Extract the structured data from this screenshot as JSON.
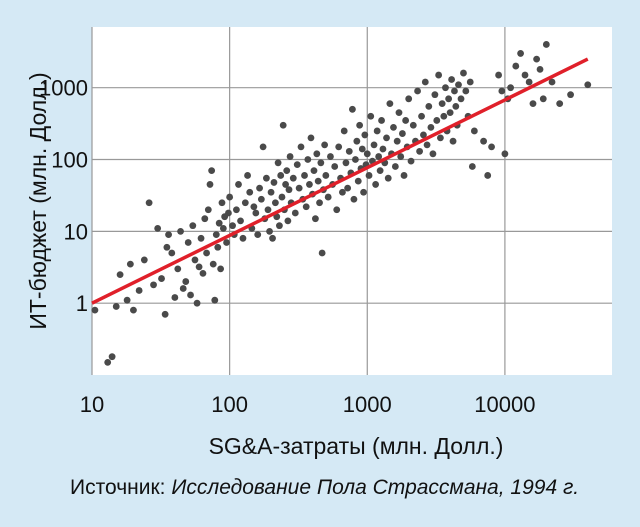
{
  "chart_data": {
    "type": "scatter",
    "xlabel": "SG&A-затраты (млн. Долл.)",
    "ylabel": "ИТ-бюджет (млн. Долл.)",
    "x_scale": "log",
    "y_scale": "log",
    "xlim": [
      10,
      60000
    ],
    "ylim": [
      0.1,
      7000
    ],
    "x_ticks": [
      10,
      100,
      1000,
      10000
    ],
    "x_tick_labels": [
      "10",
      "100",
      "1000",
      "10000"
    ],
    "y_ticks": [
      1,
      10,
      100,
      1000
    ],
    "y_tick_labels": [
      "1",
      "10",
      "100",
      "1000"
    ],
    "grid": true,
    "colors": {
      "points": "#4a4a4a",
      "trend": "#e0202a",
      "plot_bg": "#ffffff",
      "page_bg": "#d5e9f5"
    },
    "trend_line": {
      "x": [
        10,
        40000
      ],
      "y": [
        1,
        2500
      ]
    },
    "points": [
      [
        10.5,
        0.8
      ],
      [
        13,
        0.15
      ],
      [
        14,
        0.18
      ],
      [
        15,
        0.9
      ],
      [
        16,
        2.5
      ],
      [
        18,
        1.1
      ],
      [
        19,
        3.5
      ],
      [
        20,
        0.8
      ],
      [
        22,
        1.5
      ],
      [
        24,
        4
      ],
      [
        26,
        25
      ],
      [
        28,
        1.8
      ],
      [
        30,
        11
      ],
      [
        32,
        2.2
      ],
      [
        34,
        0.7
      ],
      [
        35,
        6
      ],
      [
        36,
        9
      ],
      [
        38,
        5
      ],
      [
        40,
        1.2
      ],
      [
        42,
        3
      ],
      [
        44,
        10
      ],
      [
        46,
        1.6
      ],
      [
        48,
        2
      ],
      [
        50,
        7
      ],
      [
        52,
        1.3
      ],
      [
        54,
        12
      ],
      [
        56,
        4
      ],
      [
        58,
        1
      ],
      [
        60,
        3.2
      ],
      [
        62,
        8
      ],
      [
        64,
        2.6
      ],
      [
        66,
        15
      ],
      [
        68,
        5
      ],
      [
        70,
        20
      ],
      [
        72,
        45
      ],
      [
        74,
        70
      ],
      [
        76,
        3.5
      ],
      [
        78,
        1.1
      ],
      [
        80,
        9
      ],
      [
        82,
        6
      ],
      [
        84,
        13
      ],
      [
        86,
        3
      ],
      [
        88,
        25
      ],
      [
        90,
        11
      ],
      [
        92,
        16
      ],
      [
        95,
        7
      ],
      [
        98,
        18
      ],
      [
        100,
        30
      ],
      [
        105,
        12
      ],
      [
        108,
        9
      ],
      [
        112,
        20
      ],
      [
        116,
        45
      ],
      [
        120,
        14
      ],
      [
        125,
        8
      ],
      [
        130,
        25
      ],
      [
        135,
        60
      ],
      [
        140,
        35
      ],
      [
        145,
        11
      ],
      [
        150,
        22
      ],
      [
        155,
        18
      ],
      [
        160,
        9
      ],
      [
        165,
        40
      ],
      [
        170,
        28
      ],
      [
        175,
        150
      ],
      [
        180,
        15
      ],
      [
        185,
        55
      ],
      [
        190,
        20
      ],
      [
        195,
        10
      ],
      [
        200,
        35
      ],
      [
        205,
        8
      ],
      [
        210,
        48
      ],
      [
        215,
        25
      ],
      [
        220,
        16
      ],
      [
        225,
        90
      ],
      [
        230,
        12
      ],
      [
        235,
        60
      ],
      [
        240,
        30
      ],
      [
        245,
        300
      ],
      [
        250,
        20
      ],
      [
        255,
        45
      ],
      [
        260,
        70
      ],
      [
        265,
        14
      ],
      [
        270,
        38
      ],
      [
        275,
        110
      ],
      [
        280,
        25
      ],
      [
        290,
        55
      ],
      [
        300,
        18
      ],
      [
        310,
        85
      ],
      [
        320,
        40
      ],
      [
        330,
        150
      ],
      [
        340,
        28
      ],
      [
        350,
        60
      ],
      [
        360,
        22
      ],
      [
        370,
        100
      ],
      [
        380,
        45
      ],
      [
        390,
        200
      ],
      [
        400,
        33
      ],
      [
        410,
        70
      ],
      [
        420,
        15
      ],
      [
        430,
        120
      ],
      [
        440,
        50
      ],
      [
        450,
        25
      ],
      [
        460,
        90
      ],
      [
        470,
        5
      ],
      [
        480,
        38
      ],
      [
        490,
        160
      ],
      [
        500,
        60
      ],
      [
        520,
        30
      ],
      [
        540,
        110
      ],
      [
        560,
        45
      ],
      [
        580,
        80
      ],
      [
        600,
        20
      ],
      [
        620,
        150
      ],
      [
        640,
        55
      ],
      [
        660,
        35
      ],
      [
        680,
        250
      ],
      [
        700,
        90
      ],
      [
        720,
        40
      ],
      [
        740,
        130
      ],
      [
        760,
        65
      ],
      [
        780,
        500
      ],
      [
        800,
        28
      ],
      [
        820,
        100
      ],
      [
        840,
        180
      ],
      [
        860,
        50
      ],
      [
        880,
        300
      ],
      [
        900,
        75
      ],
      [
        920,
        140
      ],
      [
        940,
        35
      ],
      [
        960,
        220
      ],
      [
        980,
        85
      ],
      [
        1000,
        120
      ],
      [
        1030,
        60
      ],
      [
        1060,
        400
      ],
      [
        1090,
        95
      ],
      [
        1120,
        160
      ],
      [
        1150,
        45
      ],
      [
        1180,
        250
      ],
      [
        1210,
        110
      ],
      [
        1240,
        70
      ],
      [
        1270,
        350
      ],
      [
        1300,
        140
      ],
      [
        1340,
        90
      ],
      [
        1380,
        200
      ],
      [
        1420,
        55
      ],
      [
        1460,
        600
      ],
      [
        1500,
        120
      ],
      [
        1550,
        280
      ],
      [
        1600,
        80
      ],
      [
        1650,
        180
      ],
      [
        1700,
        450
      ],
      [
        1750,
        110
      ],
      [
        1800,
        230
      ],
      [
        1850,
        60
      ],
      [
        1900,
        350
      ],
      [
        1950,
        150
      ],
      [
        2000,
        700
      ],
      [
        2080,
        95
      ],
      [
        2160,
        300
      ],
      [
        2240,
        180
      ],
      [
        2320,
        900
      ],
      [
        2400,
        130
      ],
      [
        2480,
        400
      ],
      [
        2560,
        220
      ],
      [
        2640,
        1200
      ],
      [
        2720,
        160
      ],
      [
        2800,
        550
      ],
      [
        2900,
        280
      ],
      [
        3000,
        120
      ],
      [
        3100,
        800
      ],
      [
        3200,
        350
      ],
      [
        3300,
        1500
      ],
      [
        3400,
        200
      ],
      [
        3500,
        600
      ],
      [
        3600,
        400
      ],
      [
        3700,
        1000
      ],
      [
        3800,
        250
      ],
      [
        3900,
        700
      ],
      [
        4000,
        450
      ],
      [
        4100,
        1300
      ],
      [
        4200,
        180
      ],
      [
        4300,
        900
      ],
      [
        4400,
        550
      ],
      [
        4500,
        300
      ],
      [
        4600,
        1100
      ],
      [
        4800,
        700
      ],
      [
        5000,
        1600
      ],
      [
        5200,
        900
      ],
      [
        5400,
        400
      ],
      [
        5600,
        1200
      ],
      [
        5800,
        80
      ],
      [
        6000,
        250
      ],
      [
        7000,
        180
      ],
      [
        7500,
        60
      ],
      [
        8000,
        150
      ],
      [
        9000,
        1500
      ],
      [
        9500,
        900
      ],
      [
        10000,
        120
      ],
      [
        10500,
        700
      ],
      [
        11000,
        1000
      ],
      [
        12000,
        2000
      ],
      [
        13000,
        3000
      ],
      [
        14000,
        1500
      ],
      [
        15000,
        1200
      ],
      [
        16000,
        600
      ],
      [
        17000,
        2500
      ],
      [
        18000,
        1800
      ],
      [
        19000,
        700
      ],
      [
        20000,
        4000
      ],
      [
        22000,
        1200
      ],
      [
        25000,
        600
      ],
      [
        30000,
        800
      ],
      [
        40000,
        1100
      ]
    ]
  },
  "footer": {
    "source_label": "Источник: ",
    "source_text": "Исследование Пола Страссмана, 1994 г."
  }
}
